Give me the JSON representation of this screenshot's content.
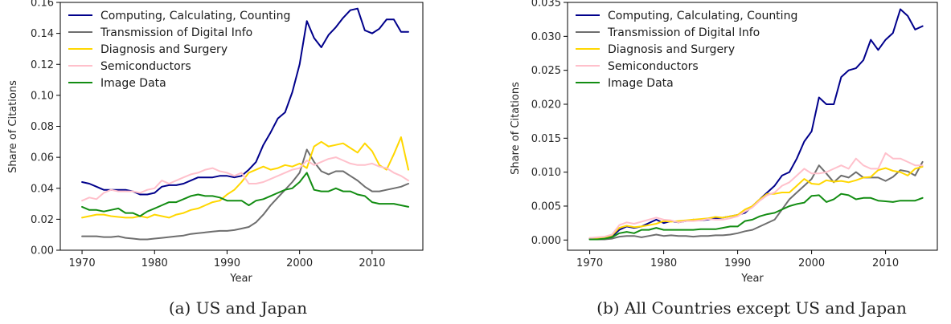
{
  "chart_data": [
    {
      "type": "line",
      "caption": "(a) US and Japan",
      "xlabel": "Year",
      "ylabel": "Share of Citations",
      "xlim": [
        1967,
        2017
      ],
      "ylim": [
        0,
        0.16
      ],
      "xticks": [
        1970,
        1980,
        1990,
        2000,
        2010
      ],
      "xtick_labels": [
        "1970",
        "1980",
        "1990",
        "2000",
        "2010"
      ],
      "yticks": [
        0,
        0.02,
        0.04,
        0.06,
        0.08,
        0.1,
        0.12,
        0.14,
        0.16
      ],
      "ytick_labels": [
        "0.00",
        "0.02",
        "0.04",
        "0.06",
        "0.08",
        "0.10",
        "0.12",
        "0.14",
        "0.16"
      ],
      "legend_position": "top-left",
      "x": [
        1970,
        1971,
        1972,
        1973,
        1974,
        1975,
        1976,
        1977,
        1978,
        1979,
        1980,
        1981,
        1982,
        1983,
        1984,
        1985,
        1986,
        1987,
        1988,
        1989,
        1990,
        1991,
        1992,
        1993,
        1994,
        1995,
        1996,
        1997,
        1998,
        1999,
        2000,
        2001,
        2002,
        2003,
        2004,
        2005,
        2006,
        2007,
        2008,
        2009,
        2010,
        2011,
        2012,
        2013,
        2014,
        2015
      ],
      "series": [
        {
          "name": "Computing, Calculating, Counting",
          "color": "#00008b",
          "values": [
            0.044,
            0.043,
            0.041,
            0.039,
            0.039,
            0.039,
            0.039,
            0.038,
            0.036,
            0.036,
            0.037,
            0.041,
            0.042,
            0.042,
            0.043,
            0.045,
            0.047,
            0.047,
            0.047,
            0.048,
            0.048,
            0.047,
            0.048,
            0.052,
            0.057,
            0.068,
            0.076,
            0.085,
            0.089,
            0.102,
            0.12,
            0.148,
            0.137,
            0.131,
            0.139,
            0.144,
            0.15,
            0.155,
            0.156,
            0.142,
            0.14,
            0.143,
            0.149,
            0.149,
            0.141,
            0.141
          ]
        },
        {
          "name": "Transmission of Digital Info",
          "color": "#6e6e6e",
          "values": [
            0.009,
            0.009,
            0.009,
            0.0085,
            0.0085,
            0.009,
            0.008,
            0.0075,
            0.007,
            0.007,
            0.0075,
            0.008,
            0.0085,
            0.009,
            0.0095,
            0.0105,
            0.011,
            0.0115,
            0.012,
            0.0125,
            0.0125,
            0.013,
            0.014,
            0.015,
            0.018,
            0.023,
            0.029,
            0.034,
            0.039,
            0.044,
            0.05,
            0.065,
            0.057,
            0.051,
            0.049,
            0.051,
            0.051,
            0.048,
            0.045,
            0.041,
            0.038,
            0.038,
            0.039,
            0.04,
            0.041,
            0.043
          ]
        },
        {
          "name": "Diagnosis and Surgery",
          "color": "#ffd700",
          "values": [
            0.021,
            0.022,
            0.023,
            0.023,
            0.022,
            0.0215,
            0.021,
            0.021,
            0.022,
            0.021,
            0.023,
            0.022,
            0.021,
            0.023,
            0.024,
            0.026,
            0.027,
            0.029,
            0.031,
            0.032,
            0.036,
            0.039,
            0.044,
            0.05,
            0.052,
            0.054,
            0.052,
            0.053,
            0.055,
            0.054,
            0.056,
            0.053,
            0.067,
            0.07,
            0.067,
            0.068,
            0.069,
            0.066,
            0.063,
            0.069,
            0.064,
            0.055,
            0.052,
            0.062,
            0.073,
            0.052
          ]
        },
        {
          "name": "Semiconductors",
          "color": "#ffc0cb",
          "values": [
            0.032,
            0.034,
            0.033,
            0.037,
            0.039,
            0.038,
            0.038,
            0.038,
            0.037,
            0.039,
            0.04,
            0.045,
            0.043,
            0.045,
            0.047,
            0.049,
            0.05,
            0.052,
            0.053,
            0.051,
            0.05,
            0.048,
            0.05,
            0.043,
            0.043,
            0.044,
            0.046,
            0.048,
            0.05,
            0.052,
            0.053,
            0.058,
            0.055,
            0.057,
            0.059,
            0.06,
            0.058,
            0.056,
            0.055,
            0.055,
            0.056,
            0.054,
            0.053,
            0.05,
            0.048,
            0.045
          ]
        },
        {
          "name": "Image Data",
          "color": "#138d13",
          "values": [
            0.028,
            0.026,
            0.026,
            0.025,
            0.026,
            0.027,
            0.024,
            0.024,
            0.022,
            0.025,
            0.027,
            0.029,
            0.031,
            0.031,
            0.033,
            0.035,
            0.036,
            0.035,
            0.035,
            0.034,
            0.032,
            0.032,
            0.032,
            0.029,
            0.032,
            0.033,
            0.035,
            0.037,
            0.039,
            0.04,
            0.044,
            0.05,
            0.039,
            0.038,
            0.038,
            0.04,
            0.038,
            0.038,
            0.036,
            0.035,
            0.031,
            0.03,
            0.03,
            0.03,
            0.029,
            0.028
          ]
        }
      ]
    },
    {
      "type": "line",
      "caption": "(b) All Countries except US and Japan",
      "xlabel": "Year",
      "ylabel": "Share of Citations",
      "xlim": [
        1967,
        2017
      ],
      "ylim": [
        -0.0015,
        0.035
      ],
      "xticks": [
        1970,
        1980,
        1990,
        2000,
        2010
      ],
      "xtick_labels": [
        "1970",
        "1980",
        "1990",
        "2000",
        "2010"
      ],
      "yticks": [
        0,
        0.005,
        0.01,
        0.015,
        0.02,
        0.025,
        0.03,
        0.035
      ],
      "ytick_labels": [
        "0.000",
        "0.005",
        "0.010",
        "0.015",
        "0.020",
        "0.025",
        "0.030",
        "0.035"
      ],
      "legend_position": "top-left",
      "x": [
        1970,
        1971,
        1972,
        1973,
        1974,
        1975,
        1976,
        1977,
        1978,
        1979,
        1980,
        1981,
        1982,
        1983,
        1984,
        1985,
        1986,
        1987,
        1988,
        1989,
        1990,
        1991,
        1992,
        1993,
        1994,
        1995,
        1996,
        1997,
        1998,
        1999,
        2000,
        2001,
        2002,
        2003,
        2004,
        2005,
        2006,
        2007,
        2008,
        2009,
        2010,
        2011,
        2012,
        2013,
        2014,
        2015
      ],
      "series": [
        {
          "name": "Computing, Calculating, Counting",
          "color": "#00008b",
          "values": [
            0.0002,
            0.0002,
            0.0003,
            0.0005,
            0.0015,
            0.002,
            0.0018,
            0.002,
            0.0025,
            0.003,
            0.0025,
            0.0028,
            0.0026,
            0.0028,
            0.003,
            0.0029,
            0.003,
            0.0032,
            0.0033,
            0.0035,
            0.0037,
            0.004,
            0.005,
            0.006,
            0.007,
            0.008,
            0.0095,
            0.01,
            0.012,
            0.0145,
            0.016,
            0.021,
            0.02,
            0.02,
            0.024,
            0.025,
            0.0253,
            0.0265,
            0.0295,
            0.028,
            0.0295,
            0.0305,
            0.034,
            0.033,
            0.031,
            0.0315
          ]
        },
        {
          "name": "Transmission of Digital Info",
          "color": "#6e6e6e",
          "values": [
            0.0001,
            0.0001,
            0.0001,
            0.0002,
            0.0005,
            0.0006,
            0.0006,
            0.0004,
            0.0006,
            0.0008,
            0.0006,
            0.0007,
            0.0006,
            0.0006,
            0.0005,
            0.0006,
            0.0006,
            0.0007,
            0.0007,
            0.0008,
            0.001,
            0.0013,
            0.0015,
            0.002,
            0.0025,
            0.003,
            0.0045,
            0.006,
            0.007,
            0.008,
            0.009,
            0.011,
            0.0098,
            0.0085,
            0.0095,
            0.0092,
            0.01,
            0.0092,
            0.0092,
            0.0092,
            0.0087,
            0.0093,
            0.0103,
            0.0101,
            0.0095,
            0.0115
          ]
        },
        {
          "name": "Diagnosis and Surgery",
          "color": "#ffd700",
          "values": [
            0.0003,
            0.0003,
            0.0004,
            0.0007,
            0.0018,
            0.0021,
            0.0019,
            0.002,
            0.0022,
            0.0024,
            0.0028,
            0.0027,
            0.0028,
            0.0029,
            0.003,
            0.0031,
            0.0032,
            0.0034,
            0.0033,
            0.0035,
            0.0037,
            0.0045,
            0.005,
            0.006,
            0.0068,
            0.0068,
            0.007,
            0.007,
            0.008,
            0.009,
            0.0083,
            0.0082,
            0.0088,
            0.0086,
            0.0087,
            0.0085,
            0.0088,
            0.0092,
            0.0093,
            0.0103,
            0.0106,
            0.0102,
            0.01,
            0.0095,
            0.0105,
            0.0108
          ]
        },
        {
          "name": "Semiconductors",
          "color": "#ffc0cb",
          "values": [
            0.0003,
            0.0004,
            0.0005,
            0.0008,
            0.0022,
            0.0026,
            0.0024,
            0.0027,
            0.003,
            0.0033,
            0.003,
            0.0029,
            0.0026,
            0.0028,
            0.0028,
            0.0029,
            0.0031,
            0.003,
            0.003,
            0.0032,
            0.0035,
            0.0042,
            0.0048,
            0.0058,
            0.0066,
            0.007,
            0.008,
            0.0085,
            0.0095,
            0.0105,
            0.0098,
            0.0098,
            0.01,
            0.0105,
            0.011,
            0.0105,
            0.012,
            0.011,
            0.0105,
            0.0105,
            0.0128,
            0.012,
            0.012,
            0.0115,
            0.011,
            0.011
          ]
        },
        {
          "name": "Image Data",
          "color": "#138d13",
          "values": [
            0.0001,
            0.0001,
            0.0002,
            0.0004,
            0.001,
            0.0012,
            0.001,
            0.0015,
            0.0015,
            0.0018,
            0.0015,
            0.0015,
            0.0015,
            0.0015,
            0.0015,
            0.0016,
            0.0016,
            0.0016,
            0.0018,
            0.002,
            0.002,
            0.0028,
            0.003,
            0.0035,
            0.0038,
            0.004,
            0.0045,
            0.005,
            0.0053,
            0.0055,
            0.0065,
            0.0066,
            0.0056,
            0.006,
            0.0068,
            0.0066,
            0.006,
            0.0062,
            0.0062,
            0.0058,
            0.0057,
            0.0056,
            0.0058,
            0.0058,
            0.0058,
            0.0062
          ]
        }
      ]
    }
  ]
}
